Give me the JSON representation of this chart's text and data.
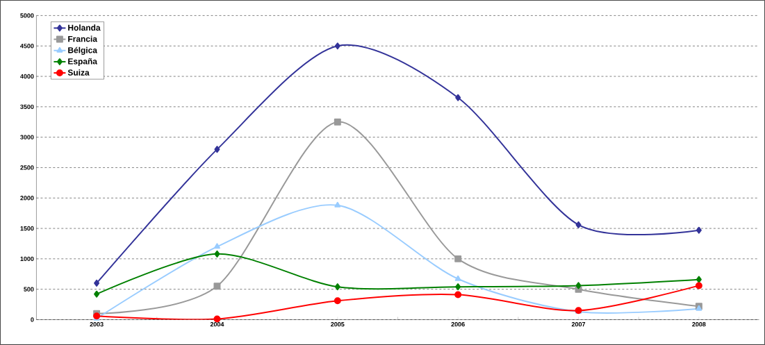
{
  "chart_data": {
    "type": "line",
    "categories": [
      "2003",
      "2004",
      "2005",
      "2006",
      "2007",
      "2008"
    ],
    "series": [
      {
        "name": "Holanda",
        "color": "#333399",
        "marker": "diamond",
        "values": [
          600,
          2800,
          4500,
          3650,
          1560,
          1470
        ]
      },
      {
        "name": "Francia",
        "color": "#999999",
        "marker": "square",
        "values": [
          100,
          550,
          3250,
          1000,
          500,
          220
        ]
      },
      {
        "name": "Bélgica",
        "color": "#99ccff",
        "marker": "triangle",
        "values": [
          20,
          1200,
          1880,
          670,
          130,
          180
        ]
      },
      {
        "name": "España",
        "color": "#008000",
        "marker": "diamond",
        "values": [
          420,
          1080,
          540,
          540,
          560,
          660
        ]
      },
      {
        "name": "Suiza",
        "color": "#ff0000",
        "marker": "circle",
        "values": [
          60,
          10,
          310,
          410,
          150,
          560
        ]
      }
    ],
    "ylim": [
      0,
      5000
    ],
    "yticks": [
      0,
      500,
      1000,
      1500,
      2000,
      2500,
      3000,
      3500,
      4000,
      4500,
      5000
    ],
    "grid": "y",
    "legend": "top left",
    "line_style": "solid"
  }
}
